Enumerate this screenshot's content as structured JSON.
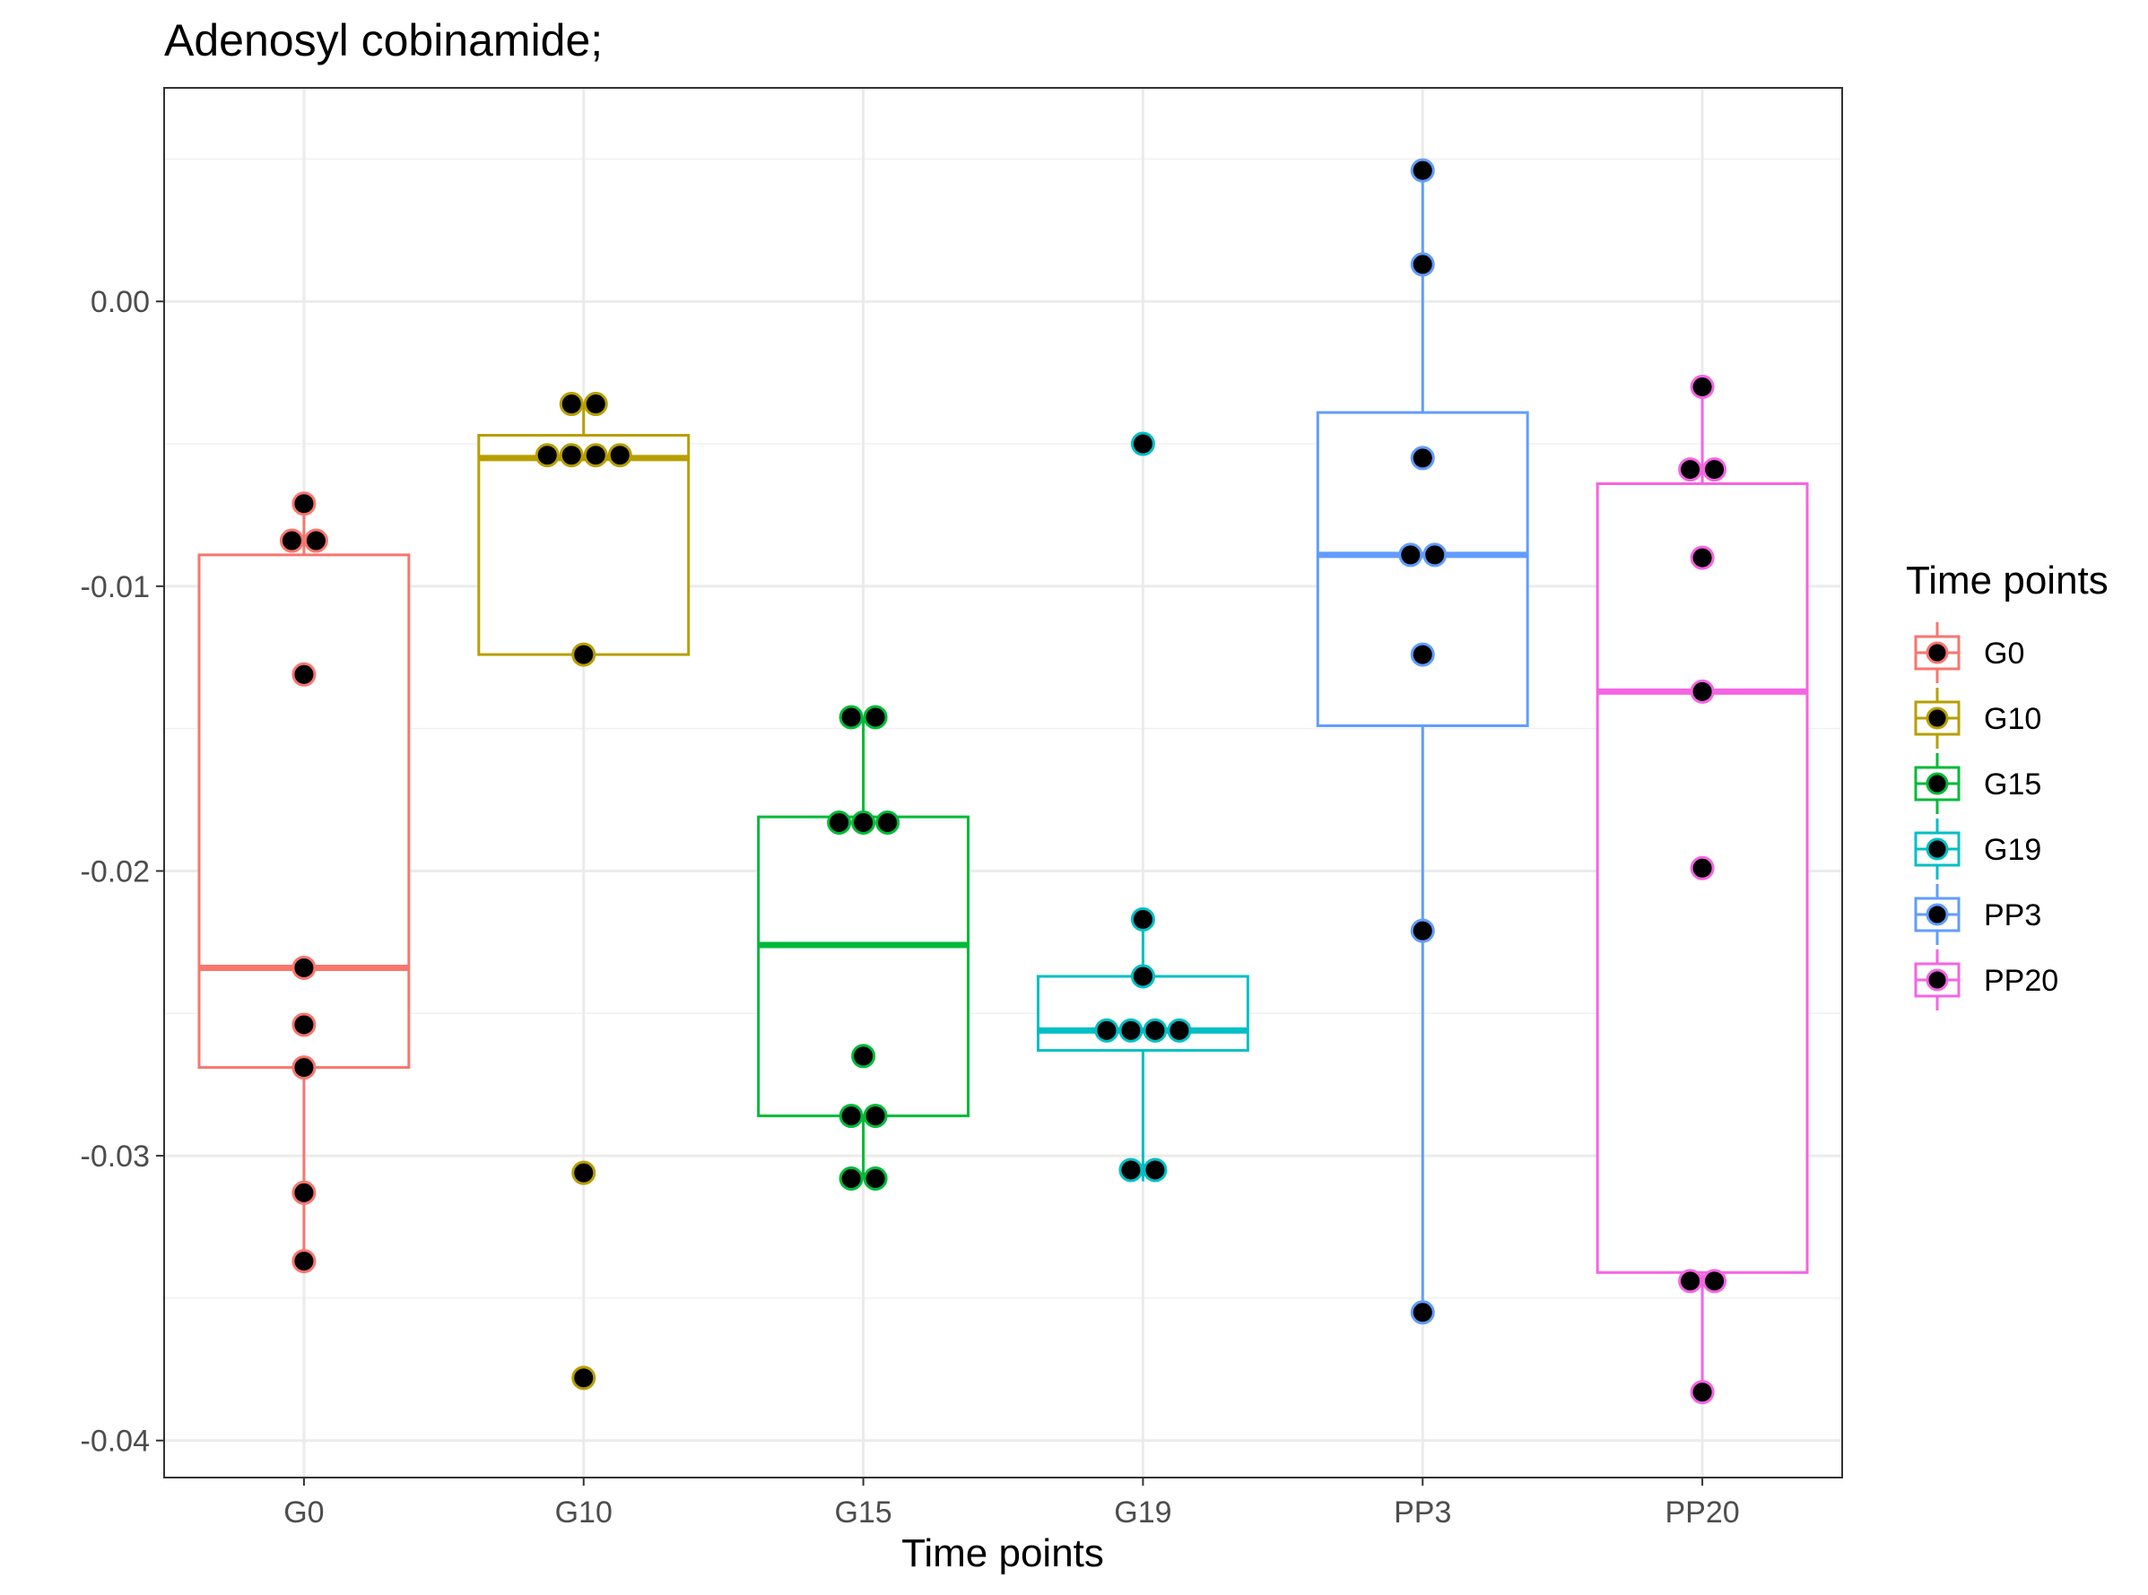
{
  "chart_data": {
    "type": "boxplot",
    "title": "Adenosyl cobinamide;",
    "xlabel": "Time points",
    "ylabel": "",
    "ylim": [
      -0.0413,
      0.0075
    ],
    "y_ticks": [
      0.0,
      -0.01,
      -0.02,
      -0.03,
      -0.04
    ],
    "y_tick_labels": [
      "0.00",
      "-0.01",
      "-0.02",
      "-0.03",
      "-0.04"
    ],
    "grid": true,
    "legend": {
      "title": "Time points",
      "position": "right"
    },
    "categories": [
      "G0",
      "G10",
      "G15",
      "G19",
      "PP3",
      "PP20"
    ],
    "colors": {
      "G0": "#F8766D",
      "G10": "#B79F00",
      "G15": "#00BA38",
      "G19": "#00BFC4",
      "PP3": "#619CFF",
      "PP20": "#F564E3"
    },
    "point_fill": "#000000",
    "groups": [
      {
        "name": "G0",
        "whisker_low": -0.0337,
        "q1": -0.0269,
        "median": -0.0234,
        "q3": -0.0089,
        "whisker_high": -0.0071,
        "points": [
          -0.0071,
          -0.0084,
          -0.0084,
          -0.0131,
          -0.0234,
          -0.0254,
          -0.0269,
          -0.0313,
          -0.0337
        ]
      },
      {
        "name": "G10",
        "whisker_low": -0.0124,
        "q1": -0.0124,
        "median": -0.0055,
        "q3": -0.0047,
        "whisker_high": -0.0036,
        "points": [
          -0.0036,
          -0.0036,
          -0.0054,
          -0.0054,
          -0.0054,
          -0.0054,
          -0.0124,
          -0.0306,
          -0.0378
        ]
      },
      {
        "name": "G15",
        "whisker_low": -0.0308,
        "q1": -0.0286,
        "median": -0.0226,
        "q3": -0.0181,
        "whisker_high": -0.0146,
        "points": [
          -0.0146,
          -0.0146,
          -0.0183,
          -0.0183,
          -0.0183,
          -0.0265,
          -0.0286,
          -0.0286,
          -0.0308,
          -0.0308
        ]
      },
      {
        "name": "G19",
        "whisker_low": -0.0309,
        "q1": -0.0263,
        "median": -0.0256,
        "q3": -0.0237,
        "whisker_high": -0.0217,
        "points": [
          -0.005,
          -0.0217,
          -0.0237,
          -0.0256,
          -0.0256,
          -0.0256,
          -0.0256,
          -0.0305,
          -0.0305
        ]
      },
      {
        "name": "PP3",
        "whisker_low": -0.0355,
        "q1": -0.0149,
        "median": -0.0089,
        "q3": -0.0039,
        "whisker_high": 0.0046,
        "points": [
          0.0046,
          0.0013,
          -0.0055,
          -0.0089,
          -0.0089,
          -0.0124,
          -0.0221,
          -0.0355
        ]
      },
      {
        "name": "PP20",
        "whisker_low": -0.0383,
        "q1": -0.0341,
        "median": -0.0137,
        "q3": -0.0064,
        "whisker_high": -0.003,
        "points": [
          -0.003,
          -0.0059,
          -0.0059,
          -0.009,
          -0.0137,
          -0.0199,
          -0.0344,
          -0.0344,
          -0.0383
        ]
      }
    ]
  }
}
